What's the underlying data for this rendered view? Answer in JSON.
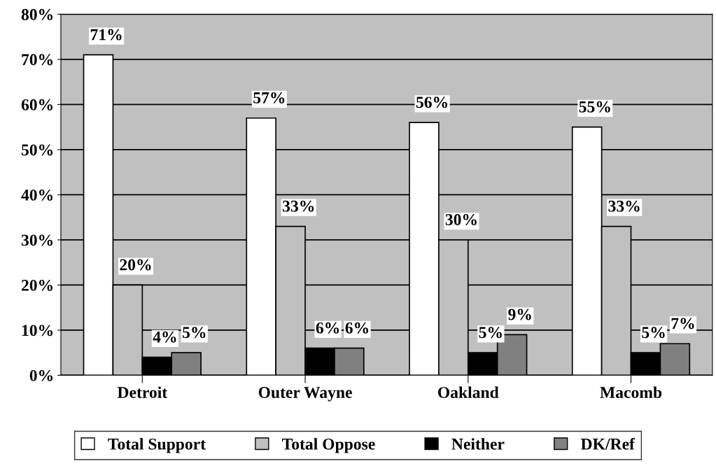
{
  "chart_data": {
    "type": "bar",
    "categories": [
      "Detroit",
      "Outer Wayne",
      "Oakland",
      "Macomb"
    ],
    "series": [
      {
        "name": "Total Support",
        "color": "#ffffff",
        "values": [
          71,
          57,
          56,
          55
        ],
        "value_labels": [
          "71%",
          "57%",
          "56%",
          "55%"
        ]
      },
      {
        "name": "Total Oppose",
        "color": "#c0c0c0",
        "values": [
          20,
          33,
          30,
          33
        ],
        "value_labels": [
          "20%",
          "33%",
          "30%",
          "33%"
        ]
      },
      {
        "name": "Neither",
        "color": "#000000",
        "values": [
          4,
          6,
          5,
          5
        ],
        "value_labels": [
          "4%",
          "6%",
          "5%",
          "5%"
        ]
      },
      {
        "name": "DK/Ref",
        "color": "#808080",
        "values": [
          5,
          6,
          9,
          7
        ],
        "value_labels": [
          "5%",
          "6%",
          "9%",
          "7%"
        ]
      }
    ],
    "ylim": [
      0,
      80
    ],
    "yticks": [
      {
        "value": 0,
        "label": "0%"
      },
      {
        "value": 10,
        "label": "10%"
      },
      {
        "value": 20,
        "label": "20%"
      },
      {
        "value": 30,
        "label": "30%"
      },
      {
        "value": 40,
        "label": "40%"
      },
      {
        "value": 50,
        "label": "50%"
      },
      {
        "value": 60,
        "label": "60%"
      },
      {
        "value": 70,
        "label": "70%"
      },
      {
        "value": 80,
        "label": "80%"
      }
    ],
    "grid": "y",
    "legend": "bottom"
  }
}
